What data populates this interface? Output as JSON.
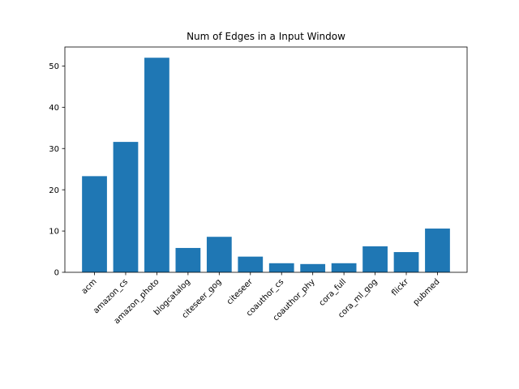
{
  "chart_data": {
    "type": "bar",
    "title": "Num of Edges in a Input Window",
    "xlabel": "",
    "ylabel": "",
    "categories": [
      "acm",
      "amazon_cs",
      "amazon_photo",
      "blogcatalog",
      "citeseer_gog",
      "citeseer",
      "coauthor_cs",
      "coauthor_phy",
      "cora_full",
      "cora_ml_gog",
      "flickr",
      "pubmed"
    ],
    "values": [
      23.3,
      31.6,
      52.0,
      5.9,
      8.6,
      3.8,
      2.2,
      2.0,
      2.2,
      6.3,
      4.9,
      10.6
    ],
    "ylim": [
      0,
      54.6
    ],
    "yticks": [
      0,
      10,
      20,
      30,
      40,
      50
    ],
    "bar_color": "#1f77b4",
    "grid": false,
    "legend": "none"
  }
}
